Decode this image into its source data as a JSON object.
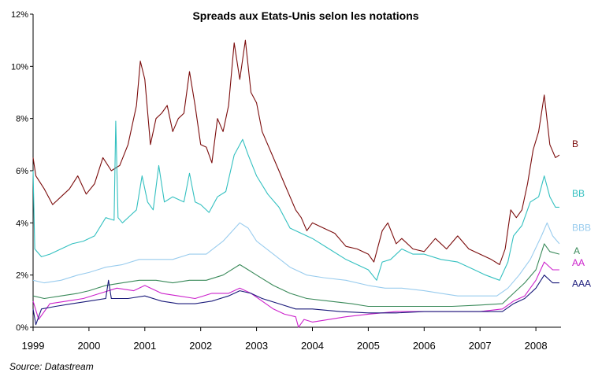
{
  "chart_data": {
    "type": "line",
    "title": "Spreads aux Etats-Unis selon les notations",
    "source": "Source: Datastream",
    "xlabel": "",
    "ylabel": "",
    "ylim": [
      0,
      12
    ],
    "xlim": [
      1999,
      2008.45
    ],
    "grid": false,
    "legend": "inline labels at right end of each series",
    "y_ticks": [
      "0%",
      "2%",
      "4%",
      "6%",
      "8%",
      "10%",
      "12%"
    ],
    "x_ticks": [
      "1999",
      "2000",
      "2001",
      "2002",
      "2003",
      "2004",
      "2005",
      "2006",
      "2007",
      "2008"
    ],
    "series": [
      {
        "name": "B",
        "color": "#7b0c0c",
        "points": [
          [
            1999.0,
            6.5
          ],
          [
            1999.05,
            5.8
          ],
          [
            1999.2,
            5.3
          ],
          [
            1999.35,
            4.7
          ],
          [
            1999.5,
            5.0
          ],
          [
            1999.65,
            5.3
          ],
          [
            1999.8,
            5.8
          ],
          [
            1999.95,
            5.1
          ],
          [
            2000.1,
            5.5
          ],
          [
            2000.25,
            6.5
          ],
          [
            2000.4,
            6.0
          ],
          [
            2000.55,
            6.2
          ],
          [
            2000.7,
            7.0
          ],
          [
            2000.85,
            8.5
          ],
          [
            2000.92,
            10.2
          ],
          [
            2001.0,
            9.5
          ],
          [
            2001.1,
            7.0
          ],
          [
            2001.2,
            8.0
          ],
          [
            2001.3,
            8.2
          ],
          [
            2001.4,
            8.5
          ],
          [
            2001.5,
            7.5
          ],
          [
            2001.6,
            8.0
          ],
          [
            2001.7,
            8.2
          ],
          [
            2001.8,
            9.8
          ],
          [
            2001.9,
            8.5
          ],
          [
            2002.0,
            7.0
          ],
          [
            2002.1,
            6.9
          ],
          [
            2002.2,
            6.3
          ],
          [
            2002.3,
            8.0
          ],
          [
            2002.4,
            7.5
          ],
          [
            2002.5,
            8.5
          ],
          [
            2002.6,
            10.9
          ],
          [
            2002.7,
            9.5
          ],
          [
            2002.8,
            11.0
          ],
          [
            2002.9,
            9.0
          ],
          [
            2003.0,
            8.6
          ],
          [
            2003.1,
            7.5
          ],
          [
            2003.2,
            7.0
          ],
          [
            2003.3,
            6.5
          ],
          [
            2003.4,
            6.0
          ],
          [
            2003.5,
            5.5
          ],
          [
            2003.6,
            5.0
          ],
          [
            2003.7,
            4.5
          ],
          [
            2003.8,
            4.2
          ],
          [
            2003.9,
            3.7
          ],
          [
            2004.0,
            4.0
          ],
          [
            2004.2,
            3.8
          ],
          [
            2004.4,
            3.6
          ],
          [
            2004.6,
            3.1
          ],
          [
            2004.8,
            3.0
          ],
          [
            2005.0,
            2.8
          ],
          [
            2005.1,
            2.5
          ],
          [
            2005.25,
            3.7
          ],
          [
            2005.35,
            4.0
          ],
          [
            2005.5,
            3.2
          ],
          [
            2005.6,
            3.4
          ],
          [
            2005.8,
            3.0
          ],
          [
            2006.0,
            2.9
          ],
          [
            2006.2,
            3.4
          ],
          [
            2006.4,
            3.0
          ],
          [
            2006.6,
            3.5
          ],
          [
            2006.8,
            3.0
          ],
          [
            2007.0,
            2.8
          ],
          [
            2007.2,
            2.6
          ],
          [
            2007.35,
            2.4
          ],
          [
            2007.45,
            3.0
          ],
          [
            2007.55,
            4.5
          ],
          [
            2007.65,
            4.2
          ],
          [
            2007.75,
            4.5
          ],
          [
            2007.85,
            5.5
          ],
          [
            2007.95,
            6.8
          ],
          [
            2008.05,
            7.5
          ],
          [
            2008.15,
            8.9
          ],
          [
            2008.25,
            7.0
          ],
          [
            2008.35,
            6.5
          ],
          [
            2008.42,
            6.6
          ]
        ]
      },
      {
        "name": "BB",
        "color": "#33c0c0",
        "points": [
          [
            1999.0,
            6.0
          ],
          [
            1999.03,
            3.0
          ],
          [
            1999.15,
            2.7
          ],
          [
            1999.3,
            2.8
          ],
          [
            1999.5,
            3.0
          ],
          [
            1999.7,
            3.2
          ],
          [
            1999.9,
            3.3
          ],
          [
            2000.1,
            3.5
          ],
          [
            2000.3,
            4.2
          ],
          [
            2000.45,
            4.1
          ],
          [
            2000.48,
            7.9
          ],
          [
            2000.52,
            4.2
          ],
          [
            2000.6,
            4.0
          ],
          [
            2000.75,
            4.3
          ],
          [
            2000.85,
            4.5
          ],
          [
            2000.95,
            5.8
          ],
          [
            2001.05,
            4.8
          ],
          [
            2001.15,
            4.5
          ],
          [
            2001.25,
            6.2
          ],
          [
            2001.35,
            4.8
          ],
          [
            2001.5,
            5.0
          ],
          [
            2001.7,
            4.8
          ],
          [
            2001.8,
            5.9
          ],
          [
            2001.9,
            4.8
          ],
          [
            2002.0,
            4.7
          ],
          [
            2002.15,
            4.4
          ],
          [
            2002.3,
            5.0
          ],
          [
            2002.45,
            5.2
          ],
          [
            2002.6,
            6.6
          ],
          [
            2002.75,
            7.2
          ],
          [
            2002.85,
            6.6
          ],
          [
            2003.0,
            5.8
          ],
          [
            2003.2,
            5.1
          ],
          [
            2003.4,
            4.6
          ],
          [
            2003.6,
            3.8
          ],
          [
            2003.8,
            3.6
          ],
          [
            2004.0,
            3.4
          ],
          [
            2004.3,
            3.0
          ],
          [
            2004.6,
            2.6
          ],
          [
            2004.8,
            2.4
          ],
          [
            2005.0,
            2.2
          ],
          [
            2005.15,
            1.8
          ],
          [
            2005.25,
            2.5
          ],
          [
            2005.4,
            2.6
          ],
          [
            2005.6,
            3.0
          ],
          [
            2005.8,
            2.8
          ],
          [
            2006.0,
            2.8
          ],
          [
            2006.3,
            2.6
          ],
          [
            2006.6,
            2.5
          ],
          [
            2006.9,
            2.2
          ],
          [
            2007.1,
            2.0
          ],
          [
            2007.35,
            1.8
          ],
          [
            2007.5,
            2.5
          ],
          [
            2007.6,
            3.5
          ],
          [
            2007.75,
            3.9
          ],
          [
            2007.9,
            4.8
          ],
          [
            2008.05,
            5.0
          ],
          [
            2008.15,
            5.8
          ],
          [
            2008.25,
            5.0
          ],
          [
            2008.35,
            4.6
          ],
          [
            2008.42,
            4.6
          ]
        ]
      },
      {
        "name": "BBB",
        "color": "#99ccee",
        "points": [
          [
            1999.0,
            1.8
          ],
          [
            1999.2,
            1.7
          ],
          [
            1999.5,
            1.8
          ],
          [
            1999.8,
            2.0
          ],
          [
            2000.0,
            2.1
          ],
          [
            2000.3,
            2.3
          ],
          [
            2000.6,
            2.4
          ],
          [
            2000.9,
            2.6
          ],
          [
            2001.2,
            2.6
          ],
          [
            2001.5,
            2.6
          ],
          [
            2001.8,
            2.8
          ],
          [
            2002.1,
            2.8
          ],
          [
            2002.4,
            3.3
          ],
          [
            2002.7,
            4.0
          ],
          [
            2002.85,
            3.8
          ],
          [
            2003.0,
            3.3
          ],
          [
            2003.3,
            2.8
          ],
          [
            2003.6,
            2.3
          ],
          [
            2003.9,
            2.0
          ],
          [
            2004.2,
            1.9
          ],
          [
            2004.6,
            1.8
          ],
          [
            2005.0,
            1.6
          ],
          [
            2005.3,
            1.5
          ],
          [
            2005.6,
            1.5
          ],
          [
            2006.0,
            1.4
          ],
          [
            2006.3,
            1.3
          ],
          [
            2006.6,
            1.2
          ],
          [
            2007.0,
            1.2
          ],
          [
            2007.3,
            1.2
          ],
          [
            2007.5,
            1.5
          ],
          [
            2007.7,
            2.0
          ],
          [
            2007.9,
            2.6
          ],
          [
            2008.1,
            3.5
          ],
          [
            2008.2,
            4.0
          ],
          [
            2008.3,
            3.5
          ],
          [
            2008.42,
            3.2
          ]
        ]
      },
      {
        "name": "A",
        "color": "#3a8a5a",
        "points": [
          [
            1999.0,
            1.2
          ],
          [
            1999.2,
            1.1
          ],
          [
            1999.5,
            1.2
          ],
          [
            1999.8,
            1.3
          ],
          [
            2000.0,
            1.4
          ],
          [
            2000.3,
            1.6
          ],
          [
            2000.6,
            1.7
          ],
          [
            2000.9,
            1.8
          ],
          [
            2001.2,
            1.8
          ],
          [
            2001.5,
            1.7
          ],
          [
            2001.8,
            1.8
          ],
          [
            2002.1,
            1.8
          ],
          [
            2002.4,
            2.0
          ],
          [
            2002.7,
            2.4
          ],
          [
            2002.85,
            2.2
          ],
          [
            2003.0,
            2.0
          ],
          [
            2003.3,
            1.6
          ],
          [
            2003.6,
            1.3
          ],
          [
            2003.9,
            1.1
          ],
          [
            2004.3,
            1.0
          ],
          [
            2004.7,
            0.9
          ],
          [
            2005.0,
            0.8
          ],
          [
            2005.5,
            0.8
          ],
          [
            2006.0,
            0.8
          ],
          [
            2006.5,
            0.8
          ],
          [
            2007.0,
            0.85
          ],
          [
            2007.4,
            0.9
          ],
          [
            2007.6,
            1.3
          ],
          [
            2007.8,
            1.7
          ],
          [
            2008.0,
            2.2
          ],
          [
            2008.15,
            3.2
          ],
          [
            2008.25,
            2.9
          ],
          [
            2008.42,
            2.8
          ]
        ]
      },
      {
        "name": "AA",
        "color": "#cc22cc",
        "points": [
          [
            1999.0,
            1.0
          ],
          [
            1999.1,
            0.3
          ],
          [
            1999.3,
            0.9
          ],
          [
            1999.6,
            1.0
          ],
          [
            1999.9,
            1.1
          ],
          [
            2000.2,
            1.3
          ],
          [
            2000.5,
            1.5
          ],
          [
            2000.8,
            1.4
          ],
          [
            2001.0,
            1.6
          ],
          [
            2001.3,
            1.3
          ],
          [
            2001.6,
            1.2
          ],
          [
            2001.9,
            1.1
          ],
          [
            2002.2,
            1.3
          ],
          [
            2002.5,
            1.3
          ],
          [
            2002.7,
            1.5
          ],
          [
            2002.9,
            1.3
          ],
          [
            2003.1,
            1.0
          ],
          [
            2003.3,
            0.7
          ],
          [
            2003.5,
            0.5
          ],
          [
            2003.7,
            0.4
          ],
          [
            2003.75,
            0.0
          ],
          [
            2003.85,
            0.3
          ],
          [
            2004.0,
            0.2
          ],
          [
            2004.3,
            0.3
          ],
          [
            2004.6,
            0.4
          ],
          [
            2005.0,
            0.5
          ],
          [
            2005.5,
            0.6
          ],
          [
            2006.0,
            0.6
          ],
          [
            2006.5,
            0.6
          ],
          [
            2007.0,
            0.6
          ],
          [
            2007.4,
            0.7
          ],
          [
            2007.6,
            1.0
          ],
          [
            2007.8,
            1.2
          ],
          [
            2008.0,
            1.8
          ],
          [
            2008.15,
            2.5
          ],
          [
            2008.3,
            2.2
          ],
          [
            2008.42,
            2.2
          ]
        ]
      },
      {
        "name": "AAA",
        "color": "#1a1a7a",
        "points": [
          [
            1999.0,
            0.7
          ],
          [
            1999.05,
            0.1
          ],
          [
            1999.15,
            0.7
          ],
          [
            1999.4,
            0.8
          ],
          [
            1999.7,
            0.9
          ],
          [
            2000.0,
            1.0
          ],
          [
            2000.3,
            1.1
          ],
          [
            2000.35,
            1.8
          ],
          [
            2000.4,
            1.1
          ],
          [
            2000.7,
            1.1
          ],
          [
            2001.0,
            1.2
          ],
          [
            2001.3,
            1.0
          ],
          [
            2001.6,
            0.9
          ],
          [
            2001.9,
            0.9
          ],
          [
            2002.2,
            1.0
          ],
          [
            2002.5,
            1.2
          ],
          [
            2002.7,
            1.4
          ],
          [
            2002.9,
            1.3
          ],
          [
            2003.1,
            1.1
          ],
          [
            2003.4,
            0.9
          ],
          [
            2003.7,
            0.7
          ],
          [
            2004.0,
            0.7
          ],
          [
            2004.5,
            0.6
          ],
          [
            2005.0,
            0.55
          ],
          [
            2005.5,
            0.55
          ],
          [
            2006.0,
            0.6
          ],
          [
            2006.5,
            0.6
          ],
          [
            2007.0,
            0.6
          ],
          [
            2007.4,
            0.6
          ],
          [
            2007.6,
            0.9
          ],
          [
            2007.8,
            1.1
          ],
          [
            2008.0,
            1.5
          ],
          [
            2008.15,
            2.0
          ],
          [
            2008.3,
            1.7
          ],
          [
            2008.42,
            1.7
          ]
        ]
      }
    ]
  }
}
